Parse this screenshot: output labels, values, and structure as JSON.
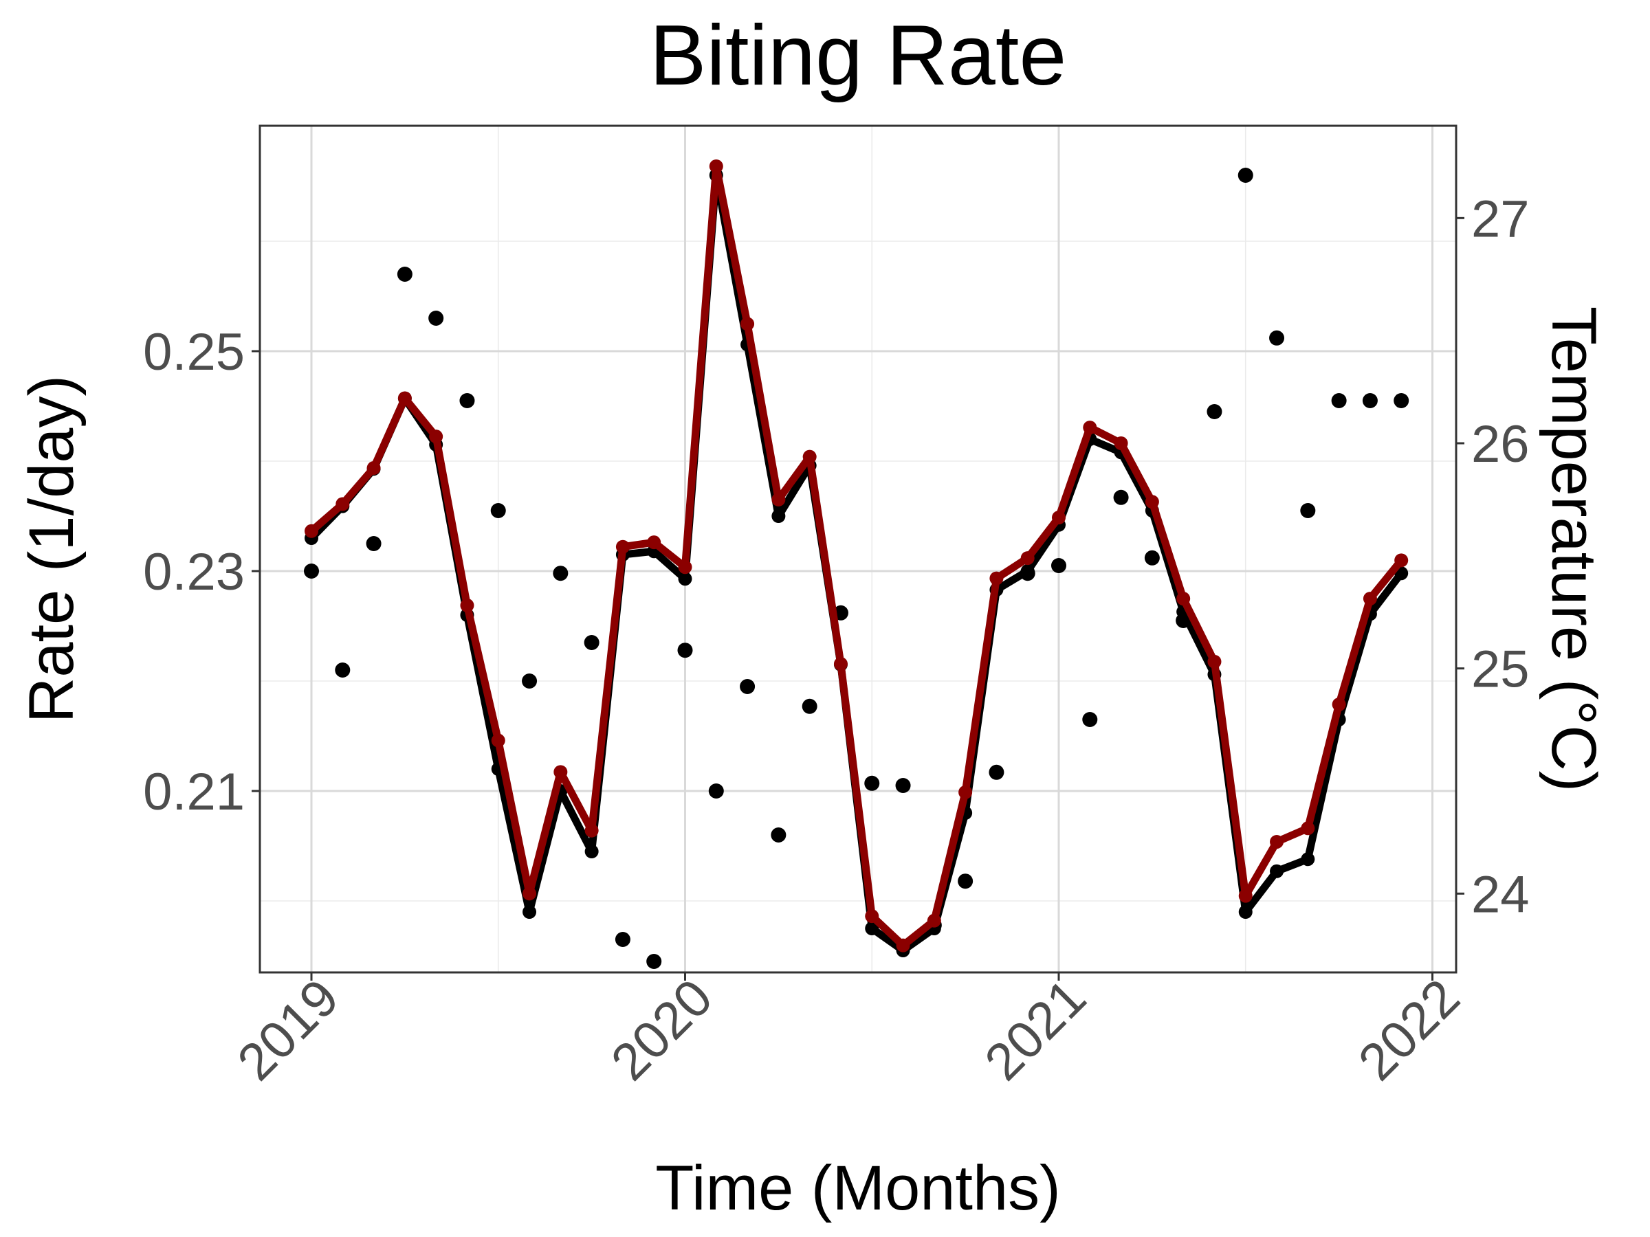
{
  "chart_data": {
    "type": "line",
    "title": "Biting Rate",
    "xlabel": "Time (Months)",
    "ylabel": "Rate (1/day)",
    "y2label": "Temperature (°C)",
    "colors": {
      "rate": "#000000",
      "temperature": "#8b0000",
      "background": "#ffffff",
      "grid": "#d9d9d9"
    },
    "grid": true,
    "x": [
      "2019-01",
      "2019-02",
      "2019-03",
      "2019-04",
      "2019-05",
      "2019-06",
      "2019-07",
      "2019-08",
      "2019-09",
      "2019-10",
      "2019-11",
      "2019-12",
      "2020-01",
      "2020-02",
      "2020-03",
      "2020-04",
      "2020-05",
      "2020-06",
      "2020-07",
      "2020-08",
      "2020-09",
      "2020-10",
      "2020-11",
      "2020-12",
      "2021-01",
      "2021-02",
      "2021-03",
      "2021-04",
      "2021-05",
      "2021-06",
      "2021-07",
      "2021-08",
      "2021-09",
      "2021-10",
      "2021-11",
      "2021-12"
    ],
    "xticks": [
      "2019",
      "2020",
      "2021",
      "2022"
    ],
    "ylim": [
      0.1935,
      0.2705
    ],
    "yticks": [
      "0.21",
      "0.23",
      "0.25"
    ],
    "y2lim": [
      23.65,
      27.41
    ],
    "y2ticks": [
      "24",
      "25",
      "26",
      "27"
    ],
    "series": [
      {
        "name": "Rate (1/day)",
        "style": "line+points",
        "axis": "left",
        "values": [
          0.233,
          0.2359,
          0.2393,
          0.2457,
          0.2415,
          0.226,
          0.212,
          0.199,
          0.21,
          0.2045,
          0.2315,
          0.2318,
          0.2293,
          0.266,
          0.2506,
          0.235,
          0.2396,
          0.2215,
          0.1975,
          0.1955,
          0.1975,
          0.208,
          0.2283,
          0.23,
          0.2342,
          0.242,
          0.2408,
          0.2355,
          0.2263,
          0.2206,
          0.199,
          0.2027,
          0.2038,
          0.2165,
          0.2261,
          0.2298
        ]
      },
      {
        "name": "Rate (1/day)",
        "style": "points",
        "axis": "left",
        "values": [
          0.23,
          0.221,
          0.2325,
          0.257,
          0.253,
          0.2455,
          0.2355,
          0.22,
          0.2298,
          0.2235,
          0.1965,
          0.1945,
          0.2228,
          0.21,
          0.2195,
          0.206,
          0.2177,
          0.2262,
          0.2107,
          0.2105,
          0.1978,
          0.2018,
          0.2117,
          0.2298,
          0.2305,
          0.2165,
          0.2367,
          0.2312,
          0.2255,
          0.2445,
          0.266,
          0.2512,
          0.2355,
          0.2455,
          0.2455,
          0.2455
        ]
      },
      {
        "name": "Temperature (°C)",
        "style": "line+points",
        "axis": "right",
        "values": [
          25.61,
          25.73,
          25.89,
          26.2,
          26.03,
          25.28,
          24.68,
          24.0,
          24.54,
          24.28,
          25.54,
          25.56,
          25.45,
          27.23,
          26.53,
          25.75,
          25.94,
          25.02,
          23.9,
          23.77,
          23.88,
          24.45,
          25.4,
          25.49,
          25.67,
          26.07,
          26.0,
          25.74,
          25.31,
          25.03,
          23.99,
          24.23,
          24.29,
          24.84,
          25.31,
          25.48
        ]
      }
    ]
  }
}
